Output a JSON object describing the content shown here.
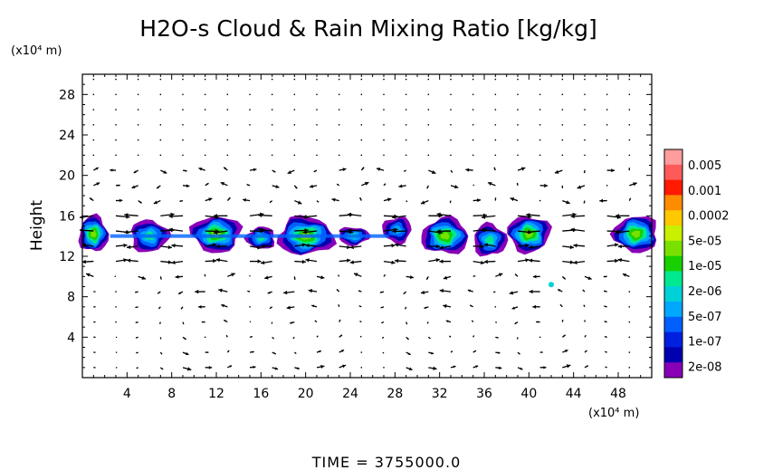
{
  "chart_data": {
    "type": "heatmap",
    "title": "H2O-s Cloud & Rain Mixing Ratio [kg/kg]",
    "ylabel": "Height",
    "y_unit": "(x10⁴ m)",
    "x_unit": "(x10⁴ m)",
    "time_text": "TIME  =  3755000.0",
    "xlim": [
      0,
      51
    ],
    "ylim": [
      0,
      30
    ],
    "x_ticks": [
      "4",
      "8",
      "12",
      "16",
      "20",
      "24",
      "28",
      "32",
      "36",
      "40",
      "44",
      "48"
    ],
    "y_ticks": [
      "4",
      "8",
      "12",
      "16",
      "20",
      "24",
      "28"
    ],
    "colorbar": {
      "labels": [
        "0.005",
        "0.001",
        "0.0002",
        "5e-05",
        "1e-05",
        "2e-06",
        "5e-07",
        "1e-07",
        "2e-08"
      ],
      "colors": [
        "#ff9c9c",
        "#ff5a5a",
        "#ff1a00",
        "#ff8c00",
        "#ffc800",
        "#c8f000",
        "#7ae000",
        "#18d000",
        "#00e890",
        "#00d0d8",
        "#00a8ff",
        "#0060ff",
        "#0020e0",
        "#0000b0",
        "#8800b8"
      ]
    },
    "cloud_band": {
      "y_bottom": 12.3,
      "y_top": 16.2
    },
    "cloud_cells": [
      {
        "x": 1.0,
        "y": 14.2,
        "width": 2.6,
        "height": 3.6,
        "core": "1e-05"
      },
      {
        "x": 6.0,
        "y": 14.0,
        "width": 3.4,
        "height": 3.2,
        "core": "2e-06"
      },
      {
        "x": 12.0,
        "y": 14.2,
        "width": 4.4,
        "height": 3.6,
        "core": "1e-05"
      },
      {
        "x": 16.0,
        "y": 13.8,
        "width": 2.6,
        "height": 2.2,
        "core": "2e-06"
      },
      {
        "x": 20.0,
        "y": 14.0,
        "width": 5.0,
        "height": 3.8,
        "core": "1e-05"
      },
      {
        "x": 24.3,
        "y": 14.0,
        "width": 2.8,
        "height": 1.8,
        "core": "2e-06"
      },
      {
        "x": 28.2,
        "y": 14.6,
        "width": 2.6,
        "height": 2.6,
        "core": "5e-07"
      },
      {
        "x": 32.5,
        "y": 14.0,
        "width": 4.2,
        "height": 3.6,
        "core": "1e-05"
      },
      {
        "x": 36.5,
        "y": 13.6,
        "width": 3.0,
        "height": 3.2,
        "core": "2e-06"
      },
      {
        "x": 40.0,
        "y": 14.2,
        "width": 3.8,
        "height": 3.6,
        "core": "1e-05"
      },
      {
        "x": 49.6,
        "y": 14.2,
        "width": 4.0,
        "height": 3.6,
        "core": "1e-05"
      }
    ],
    "isolated_cell": {
      "x": 42.0,
      "y": 9.2,
      "value": "5e-07"
    },
    "vectors": "wind field (arrows) over full domain; strong horizontal flow at 12-16 and circulation cells below 8"
  }
}
